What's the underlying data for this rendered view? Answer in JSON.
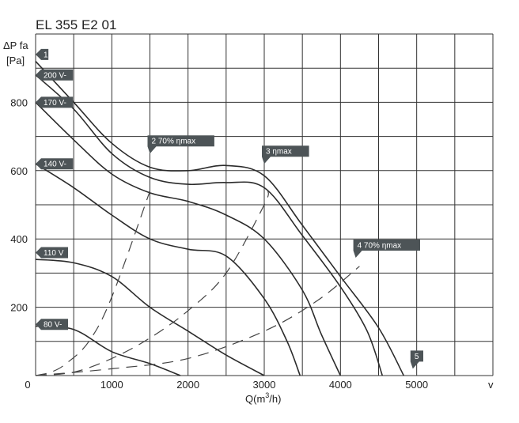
{
  "chart_data": {
    "type": "line",
    "title": "EL 355 E2 01",
    "ylabel_line1": "ΔP fa",
    "ylabel_line2": "[Pa]",
    "xlabel_main": "Q(m",
    "xlabel_sup": "3",
    "xlabel_end": "/h)",
    "corner_label": "v",
    "xlim": [
      0,
      6000
    ],
    "ylim": [
      0,
      1000
    ],
    "x_ticks": [
      0,
      1000,
      2000,
      3000,
      4000,
      5000
    ],
    "x_tick_labels": [
      "0",
      "1000",
      "2000",
      "3000",
      "4000",
      "5000"
    ],
    "y_ticks": [
      200,
      400,
      600,
      800
    ],
    "y_tick_labels": [
      "200",
      "400",
      "600",
      "800"
    ],
    "grid": true,
    "grid_x_step": 500,
    "grid_y_step": 100,
    "series": [
      {
        "name": "1",
        "style": "solid",
        "points": [
          [
            0,
            920
          ],
          [
            500,
            800
          ],
          [
            1000,
            680
          ],
          [
            1500,
            610
          ],
          [
            2000,
            600
          ],
          [
            2500,
            615
          ],
          [
            3000,
            585
          ],
          [
            3500,
            440
          ],
          [
            4000,
            290
          ],
          [
            4500,
            140
          ],
          [
            4830,
            0
          ]
        ]
      },
      {
        "name": "200 V-",
        "style": "solid",
        "points": [
          [
            0,
            880
          ],
          [
            500,
            780
          ],
          [
            1000,
            650
          ],
          [
            1500,
            580
          ],
          [
            2000,
            560
          ],
          [
            2500,
            565
          ],
          [
            3000,
            550
          ],
          [
            3500,
            410
          ],
          [
            4000,
            260
          ],
          [
            4350,
            130
          ],
          [
            4550,
            0
          ]
        ]
      },
      {
        "name": "170 V-",
        "style": "solid",
        "points": [
          [
            0,
            800
          ],
          [
            500,
            690
          ],
          [
            1000,
            590
          ],
          [
            1500,
            535
          ],
          [
            2000,
            510
          ],
          [
            2500,
            470
          ],
          [
            3000,
            400
          ],
          [
            3500,
            250
          ],
          [
            3750,
            120
          ],
          [
            4000,
            0
          ]
        ]
      },
      {
        "name": "140 V-",
        "style": "solid",
        "points": [
          [
            0,
            620
          ],
          [
            500,
            550
          ],
          [
            1000,
            470
          ],
          [
            1500,
            400
          ],
          [
            2000,
            370
          ],
          [
            2500,
            350
          ],
          [
            3000,
            225
          ],
          [
            3300,
            100
          ],
          [
            3470,
            0
          ]
        ]
      },
      {
        "name": "110 V",
        "style": "solid",
        "points": [
          [
            0,
            340
          ],
          [
            500,
            330
          ],
          [
            1000,
            290
          ],
          [
            1500,
            200
          ],
          [
            2000,
            130
          ],
          [
            2500,
            60
          ],
          [
            3000,
            0
          ]
        ]
      },
      {
        "name": "80 V-",
        "style": "solid",
        "points": [
          [
            0,
            145
          ],
          [
            500,
            135
          ],
          [
            1000,
            70
          ],
          [
            1500,
            35
          ],
          [
            1900,
            0
          ]
        ]
      },
      {
        "name": "2 70% ηmax",
        "style": "dashed",
        "points": [
          [
            0,
            0
          ],
          [
            200,
            10
          ],
          [
            400,
            35
          ],
          [
            700,
            100
          ],
          [
            1000,
            230
          ],
          [
            1500,
            540
          ]
        ]
      },
      {
        "name": "3 ηmax",
        "style": "dashed",
        "points": [
          [
            0,
            0
          ],
          [
            500,
            10
          ],
          [
            1000,
            50
          ],
          [
            1500,
            110
          ],
          [
            2000,
            190
          ],
          [
            2500,
            300
          ],
          [
            3000,
            500
          ],
          [
            3050,
            540
          ]
        ]
      },
      {
        "name": "4 70% ηmax",
        "style": "dashed",
        "points": [
          [
            0,
            0
          ],
          [
            1000,
            20
          ],
          [
            2000,
            50
          ],
          [
            3000,
            130
          ],
          [
            3700,
            220
          ],
          [
            4250,
            320
          ]
        ]
      }
    ],
    "flags": [
      {
        "text": "1",
        "x": 0,
        "y": 940,
        "side": "left"
      },
      {
        "text": "200 V-",
        "x": 0,
        "y": 880,
        "side": "left"
      },
      {
        "text": "170 V-",
        "x": 0,
        "y": 800,
        "side": "left"
      },
      {
        "text": "140 V-",
        "x": 0,
        "y": 620,
        "side": "left"
      },
      {
        "text": "110 V",
        "x": 0,
        "y": 360,
        "side": "left"
      },
      {
        "text": "80 V-",
        "x": 0,
        "y": 150,
        "side": "left"
      },
      {
        "text": "2   70% ηmax",
        "x": 1500,
        "y": 650,
        "side": "bottom"
      },
      {
        "text": "3   ηmax",
        "x": 3000,
        "y": 620,
        "side": "bottom"
      },
      {
        "text": "4   70% ηmax",
        "x": 4200,
        "y": 345,
        "side": "bottom"
      },
      {
        "text": "5",
        "x": 4950,
        "y": 20,
        "side": "bottom"
      }
    ]
  }
}
